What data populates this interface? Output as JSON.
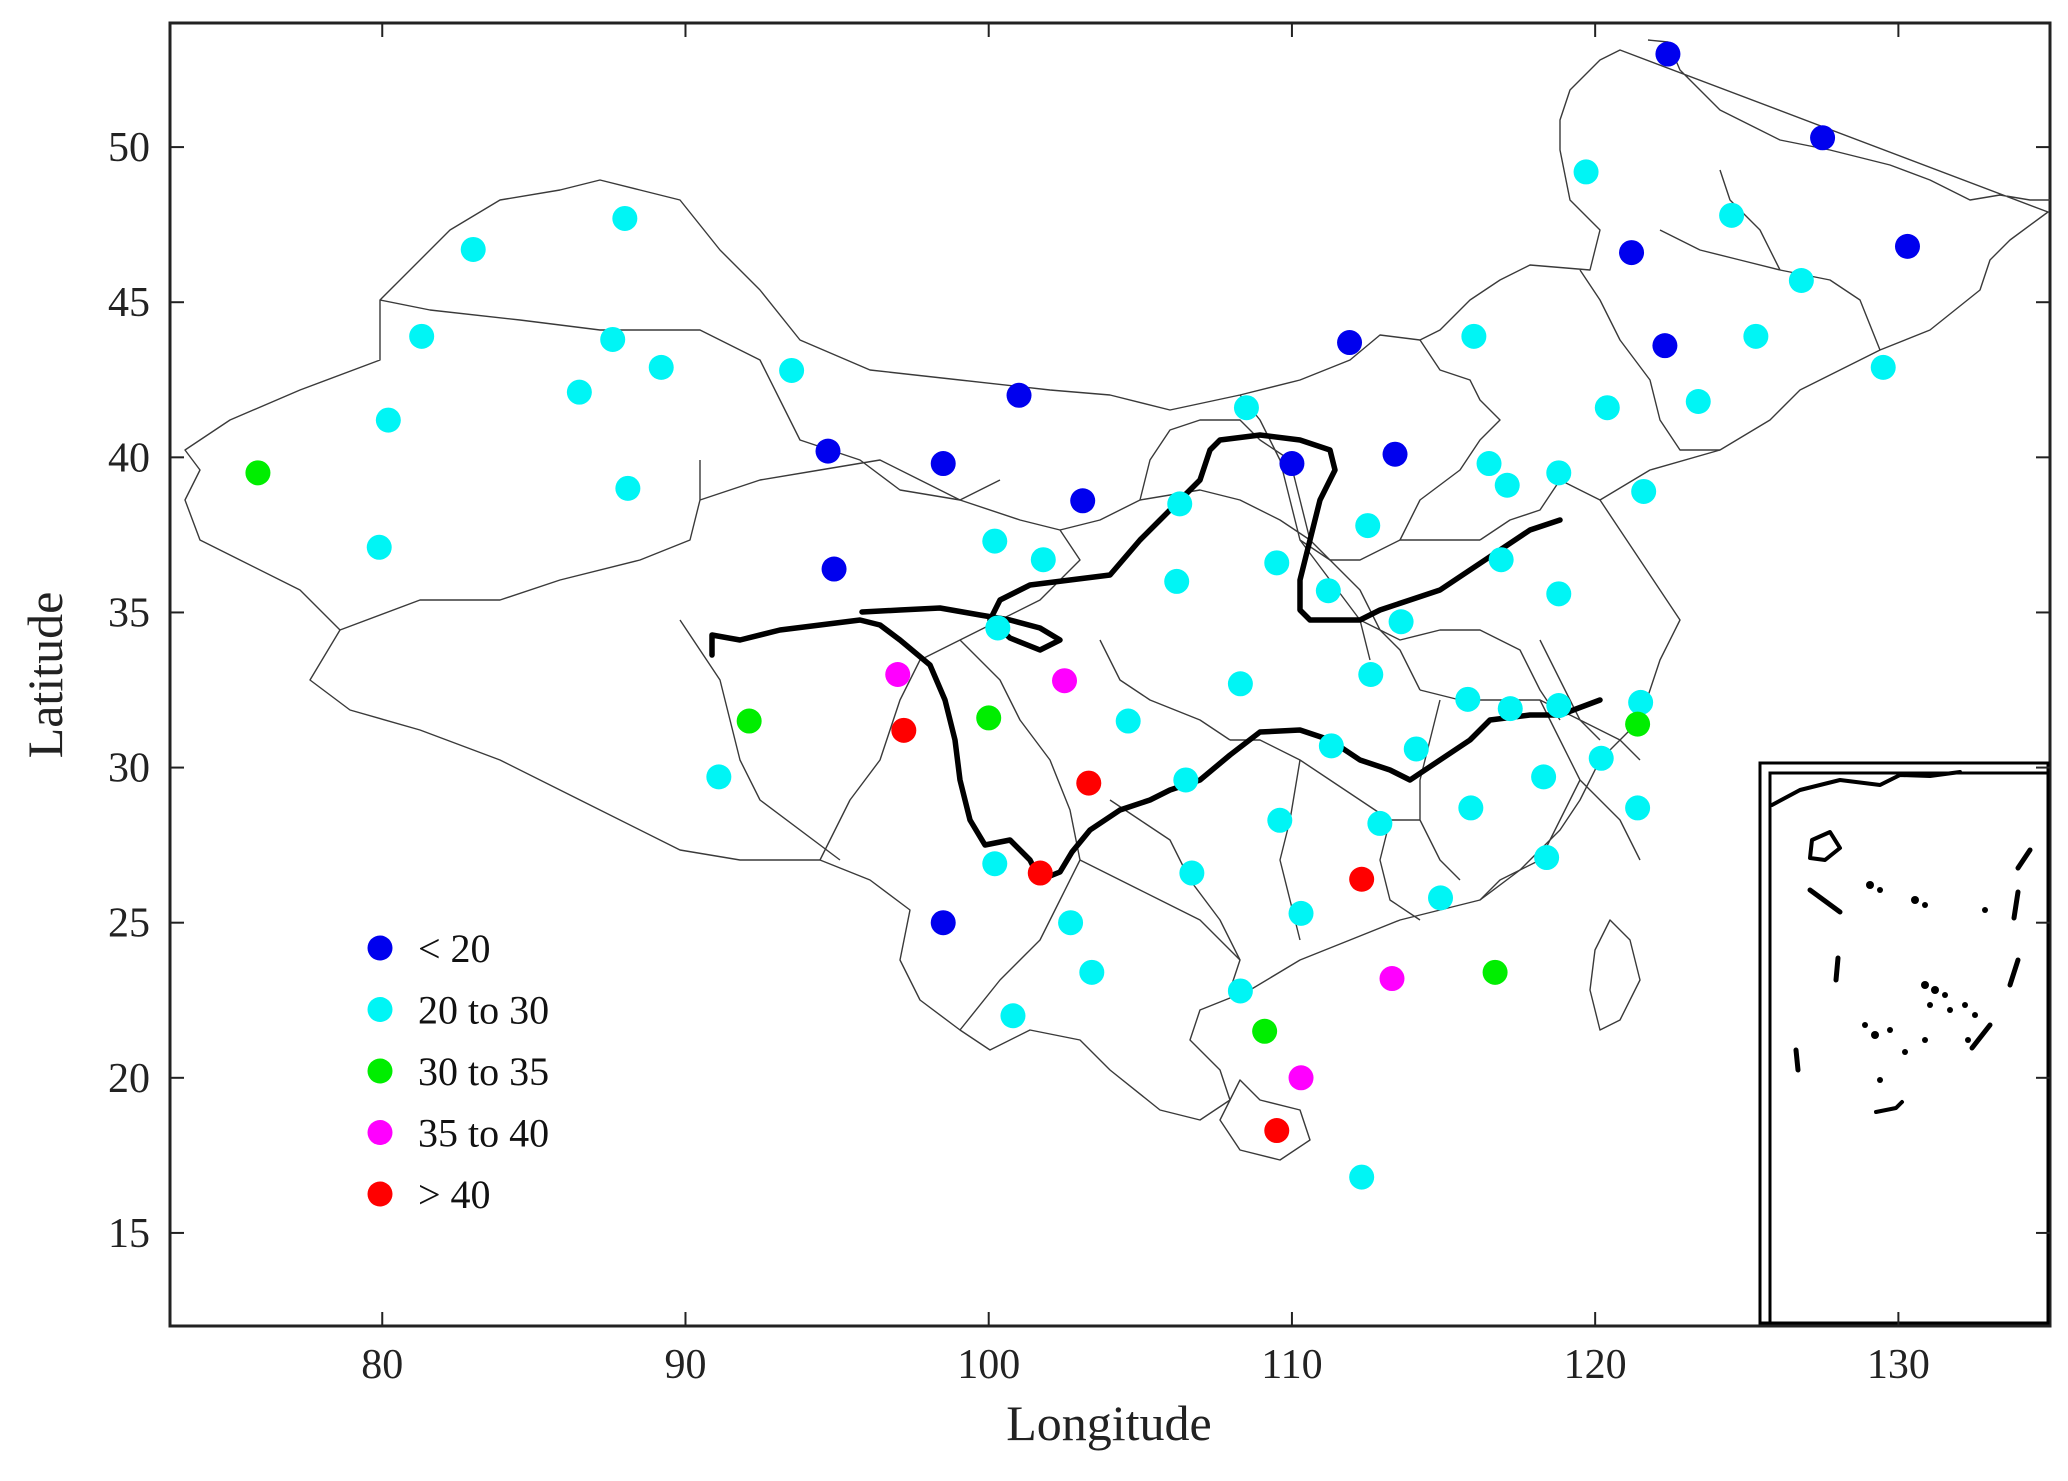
{
  "chart_data": {
    "type": "scatter",
    "xlabel": "Longitude",
    "ylabel": "Latitude",
    "xlim": [
      73,
      135
    ],
    "ylim": [
      12,
      54
    ],
    "x_ticks": [
      80,
      90,
      100,
      110,
      120,
      130
    ],
    "y_ticks": [
      15,
      20,
      25,
      30,
      35,
      40,
      45,
      50
    ],
    "legend_position": "bottom-left",
    "series": [
      {
        "name": "< 20",
        "color": "#0000ee",
        "points": [
          [
            122.4,
            53
          ],
          [
            127.5,
            50.3
          ],
          [
            121.2,
            46.6
          ],
          [
            130.3,
            46.8
          ],
          [
            111.9,
            43.7
          ],
          [
            122.3,
            43.6
          ],
          [
            101,
            42
          ],
          [
            94.7,
            40.2
          ],
          [
            98.5,
            39.8
          ],
          [
            110,
            39.8
          ],
          [
            113.4,
            40.1
          ],
          [
            103.1,
            38.6
          ],
          [
            94.9,
            36.4
          ],
          [
            98.5,
            25
          ]
        ]
      },
      {
        "name": "20 to 30",
        "color": "#00f5f5",
        "points": [
          [
            83,
            46.7
          ],
          [
            88,
            47.7
          ],
          [
            81.3,
            43.9
          ],
          [
            87.6,
            43.8
          ],
          [
            89.2,
            42.9
          ],
          [
            86.5,
            42.1
          ],
          [
            93.5,
            42.8
          ],
          [
            80.2,
            41.2
          ],
          [
            88.1,
            39
          ],
          [
            79.9,
            37.1
          ],
          [
            119.7,
            49.2
          ],
          [
            124.5,
            47.8
          ],
          [
            126.8,
            45.7
          ],
          [
            116,
            43.9
          ],
          [
            125.3,
            43.9
          ],
          [
            129.5,
            42.9
          ],
          [
            108.5,
            41.6
          ],
          [
            123.4,
            41.8
          ],
          [
            120.4,
            41.6
          ],
          [
            116.5,
            39.8
          ],
          [
            118.8,
            39.5
          ],
          [
            117.1,
            39.1
          ],
          [
            121.6,
            38.9
          ],
          [
            106.3,
            38.5
          ],
          [
            112.5,
            37.8
          ],
          [
            100.2,
            37.3
          ],
          [
            101.8,
            36.7
          ],
          [
            109.5,
            36.6
          ],
          [
            106.2,
            36
          ],
          [
            111.2,
            35.7
          ],
          [
            116.9,
            36.7
          ],
          [
            118.8,
            35.6
          ],
          [
            100.3,
            34.5
          ],
          [
            113.6,
            34.7
          ],
          [
            104.6,
            31.5
          ],
          [
            108.3,
            32.7
          ],
          [
            112.6,
            33
          ],
          [
            115.8,
            32.2
          ],
          [
            117.2,
            31.9
          ],
          [
            118.8,
            32
          ],
          [
            121.5,
            32.1
          ],
          [
            120.2,
            30.3
          ],
          [
            111.3,
            30.7
          ],
          [
            114.1,
            30.6
          ],
          [
            106.5,
            29.6
          ],
          [
            118.3,
            29.7
          ],
          [
            121.4,
            28.7
          ],
          [
            109.6,
            28.3
          ],
          [
            112.9,
            28.2
          ],
          [
            115.9,
            28.7
          ],
          [
            118.4,
            27.1
          ],
          [
            100.2,
            26.9
          ],
          [
            106.7,
            26.6
          ],
          [
            110.3,
            25.3
          ],
          [
            114.9,
            25.8
          ],
          [
            102.7,
            25
          ],
          [
            103.4,
            23.4
          ],
          [
            108.3,
            22.8
          ],
          [
            100.8,
            22
          ],
          [
            91.1,
            29.7
          ],
          [
            112.3,
            16.8
          ]
        ]
      },
      {
        "name": "30 to 35",
        "color": "#00ee00",
        "points": [
          [
            75.9,
            39.5
          ],
          [
            92.1,
            31.5
          ],
          [
            100,
            31.6
          ],
          [
            121.4,
            31.4
          ],
          [
            116.7,
            23.4
          ],
          [
            109.1,
            21.5
          ]
        ]
      },
      {
        "name": "35 to 40",
        "color": "#ff00ff",
        "points": [
          [
            97,
            33
          ],
          [
            102.5,
            32.8
          ],
          [
            113.3,
            23.2
          ],
          [
            110.3,
            20
          ]
        ]
      },
      {
        "name": "> 40",
        "color": "#ff0000",
        "points": [
          [
            97.2,
            31.2
          ],
          [
            103.3,
            29.5
          ],
          [
            101.7,
            26.6
          ],
          [
            112.3,
            26.4
          ],
          [
            109.5,
            18.3
          ]
        ]
      }
    ]
  }
}
